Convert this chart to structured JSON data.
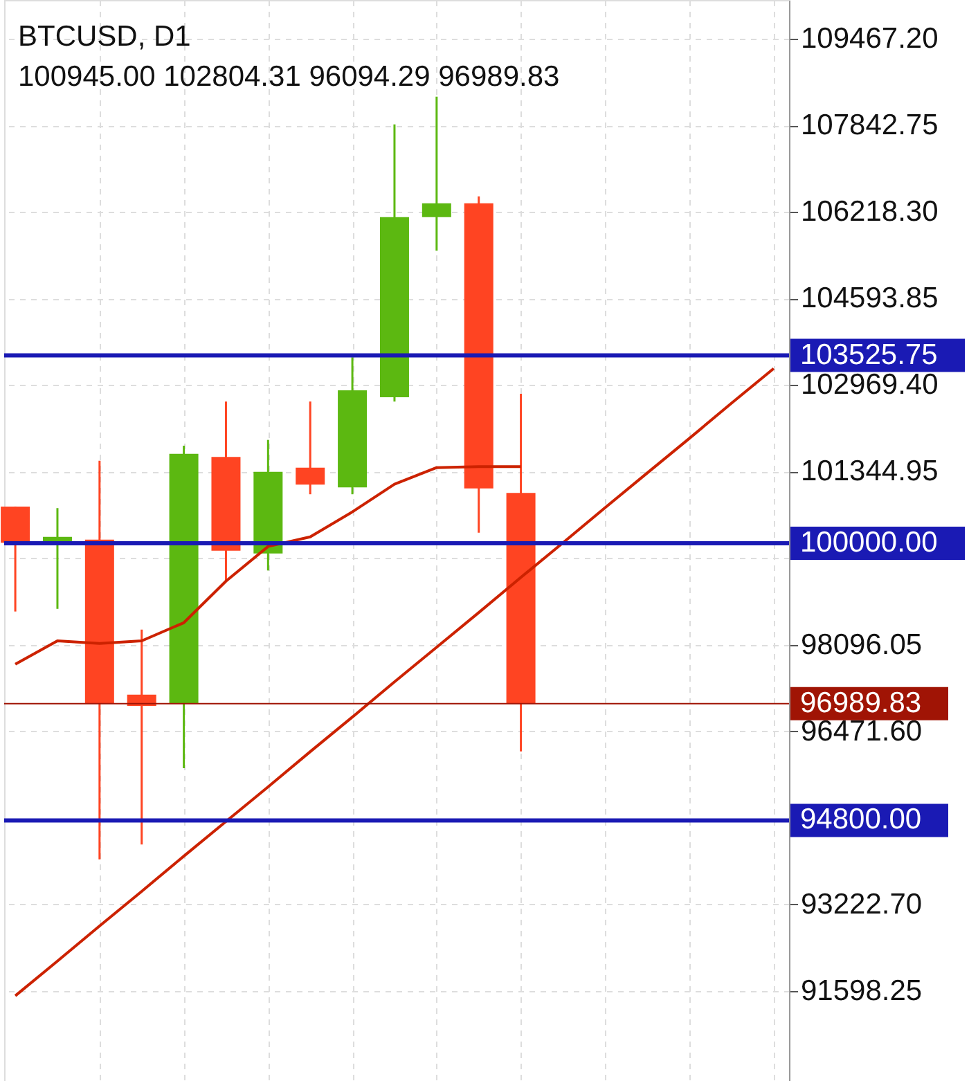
{
  "chart_data": {
    "type": "candlestick",
    "title": "BTCUSD, D1",
    "subtitle": "100945.00 102804.31 96094.29 96989.83",
    "categories": [
      null,
      null,
      null,
      null,
      null,
      null,
      null,
      null,
      null,
      null,
      null,
      null,
      null,
      null,
      null,
      null,
      null,
      null,
      null
    ],
    "ohlc": [
      [
        100690,
        100690,
        98720,
        100010
      ],
      [
        100040,
        100660,
        98770,
        100120
      ],
      [
        100070,
        101550,
        94070,
        97000
      ],
      [
        97160,
        98380,
        94350,
        96950
      ],
      [
        97000,
        101830,
        95780,
        101680
      ],
      [
        101620,
        102660,
        99290,
        99860
      ],
      [
        99810,
        101940,
        99490,
        101340
      ],
      [
        101420,
        102660,
        100920,
        101100
      ],
      [
        101050,
        103490,
        100920,
        102870
      ],
      [
        102740,
        107860,
        102660,
        106120
      ],
      [
        106120,
        108380,
        105490,
        106380
      ],
      [
        106380,
        106510,
        100200,
        101030
      ],
      [
        100945.0,
        102804.31,
        96094.29,
        96989.83
      ],
      null,
      null,
      null,
      null,
      null,
      null
    ],
    "colors": [
      "#ff4422",
      "#5cb811",
      "#ff4422",
      "#ff4422",
      "#5cb811",
      "#ff4422",
      "#5cb811",
      "#ff4422",
      "#5cb811",
      "#5cb811",
      "#5cb811",
      "#ff4422",
      "#ff4422",
      null,
      null,
      null,
      null,
      null,
      null
    ],
    "series": [
      {
        "type": "line",
        "color": "#cc2200",
        "values": [
          97730,
          98170,
          98120,
          98170,
          98510,
          99290,
          99940,
          100120,
          100590,
          101110,
          101420,
          101440,
          101440,
          null,
          null,
          null,
          null,
          null,
          null
        ]
      },
      {
        "type": "line",
        "color": "#cc2200",
        "values": [
          91510,
          92160,
          92820,
          93470,
          94130,
          94780,
          95430,
          96090,
          96740,
          97400,
          98050,
          98700,
          99360,
          100010,
          100670,
          101320,
          101970,
          102630,
          103280
        ]
      }
    ],
    "ref_lines": [
      {
        "axis": "y",
        "value": 103525.75,
        "label": "103525.75",
        "color": "#1a1ab4"
      },
      {
        "axis": "y",
        "value": 100000.0,
        "label": "100000.00",
        "color": "#1a1ab4"
      },
      {
        "axis": "y",
        "value": 94800.0,
        "label": "94800.00",
        "color": "#1a1ab4"
      },
      {
        "axis": "y",
        "value": 96989.83,
        "label": "96989.83",
        "color": "#a01405"
      }
    ],
    "ylim": [
      89911,
      110194
    ],
    "yticks": [
      {
        "value": 109467.2,
        "label": "109467.20"
      },
      {
        "value": 107842.75,
        "label": "107842.75"
      },
      {
        "value": 106218.3,
        "label": "106218.30"
      },
      {
        "value": 104593.85,
        "label": "104593.85"
      },
      {
        "value": 102969.4,
        "label": "102969.40"
      },
      {
        "value": 101344.95,
        "label": "101344.95"
      },
      {
        "value": 99720.5,
        "label": null
      },
      {
        "value": 98096.05,
        "label": "98096.05"
      },
      {
        "value": 96471.6,
        "label": "96471.60"
      },
      {
        "value": 93222.7,
        "label": "93222.70"
      },
      {
        "value": 91598.25,
        "label": "91598.25"
      }
    ],
    "grid": true,
    "tick_labels": "y"
  }
}
